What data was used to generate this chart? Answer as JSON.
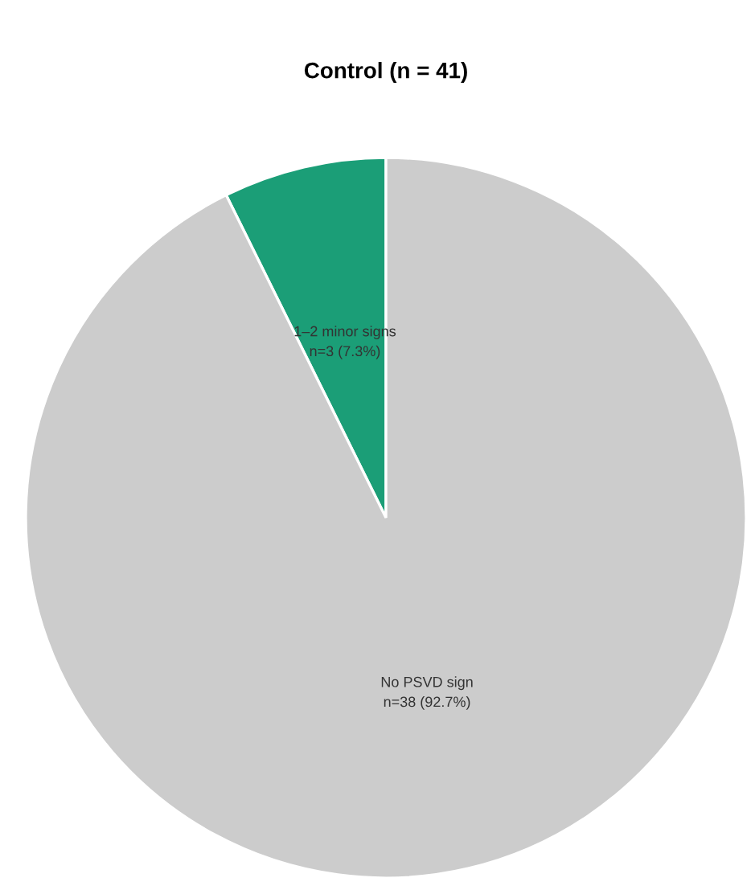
{
  "chart_data": {
    "type": "pie",
    "title": "Control (n = 41)",
    "categories": [
      "1–2 minor signs",
      "No PSVD sign"
    ],
    "values": [
      3,
      38
    ],
    "value_labels": [
      "n=3 (7.3%)",
      "n=38 (92.7%)"
    ],
    "colors": [
      "#1b9e77",
      "#cccccc"
    ]
  }
}
